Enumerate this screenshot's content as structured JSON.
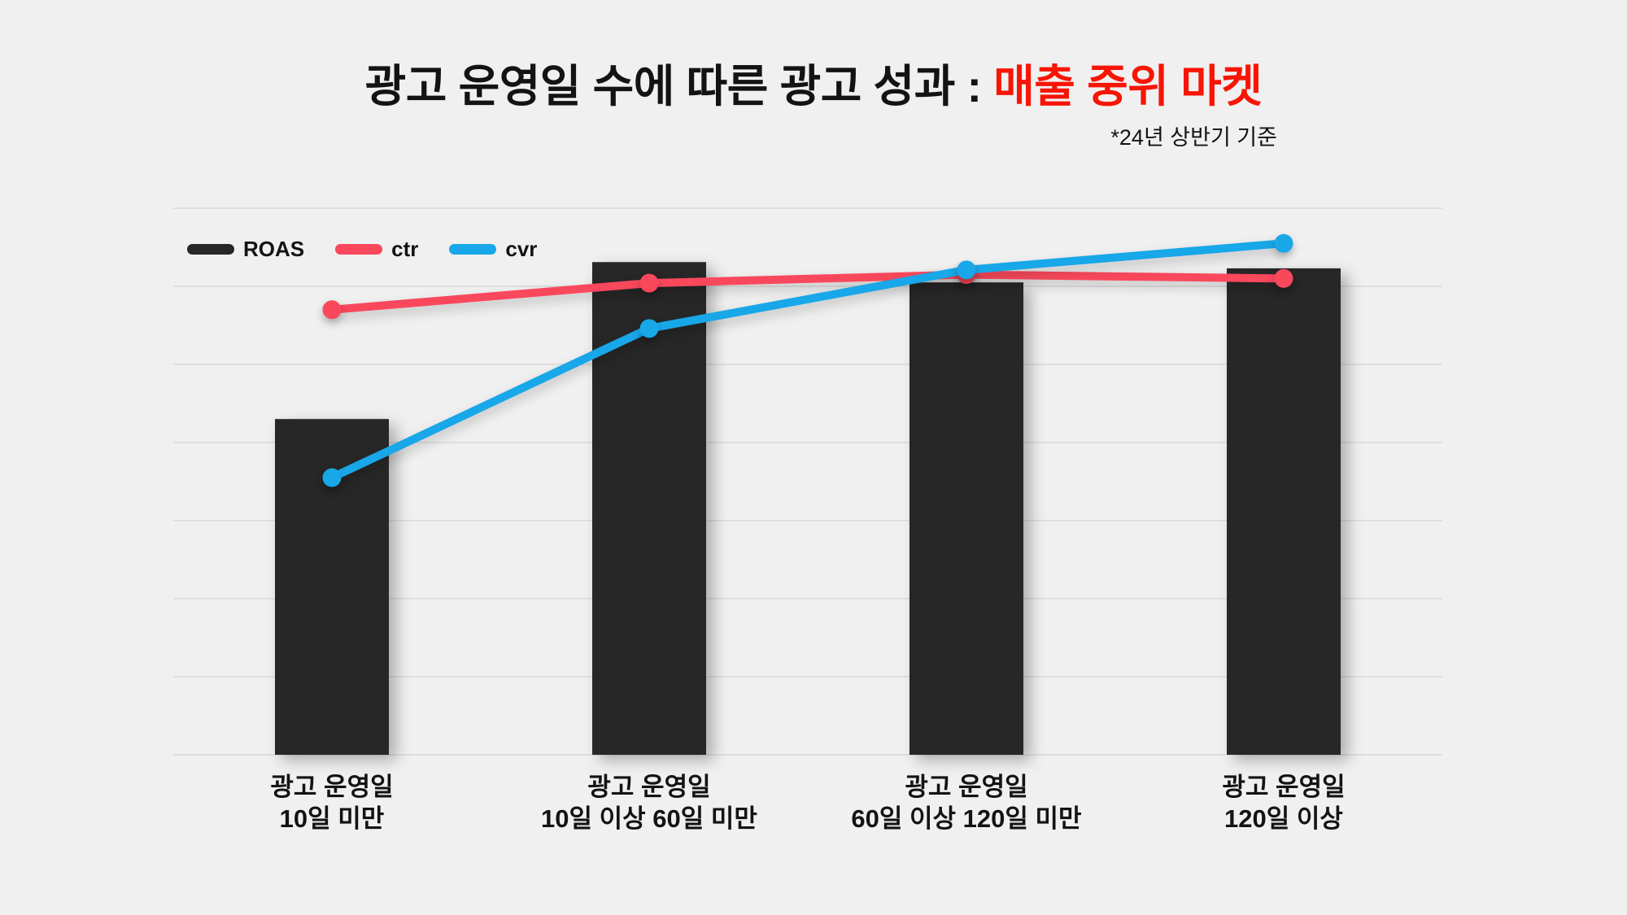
{
  "page": {
    "background_color": "#f0f0f0",
    "text_color": "#131313",
    "gridline_color": "#dfdfdf"
  },
  "header": {
    "title_black": "광고 운영일 수에 따른 광고 성과 : ",
    "title_red": "매출 중위 마켓",
    "title_red_color": "#f71505",
    "subtitle": "*24년 상반기 기준"
  },
  "legend": [
    {
      "label": "ROAS",
      "color": "#272727"
    },
    {
      "label": "ctr",
      "color": "#f9485c"
    },
    {
      "label": "cvr",
      "color": "#18a7e8"
    }
  ],
  "chart_data": {
    "type": "bar+line combo",
    "title": "광고 운영일 수에 따른 광고 성과 : 매출 중위 마켓",
    "subtitle": "*24년 상반기 기준",
    "categories": [
      "광고 운영일\n10일 미만",
      "광고 운영일\n10일 이상 60일 미만",
      "광고 운영일\n60일 이상 120일 미만",
      "광고 운영일\n120일 이상"
    ],
    "series": [
      {
        "name": "ROAS",
        "type": "bar",
        "color": "#272727",
        "values": [
          4.3,
          6.31,
          6.05,
          6.23
        ]
      },
      {
        "name": "ctr",
        "type": "line",
        "color": "#f9485c",
        "values": [
          5.7,
          6.04,
          6.15,
          6.1
        ]
      },
      {
        "name": "cvr",
        "type": "line",
        "color": "#18a7e8",
        "values": [
          3.55,
          5.46,
          6.21,
          6.55
        ]
      }
    ],
    "xlabel": "",
    "ylabel": "",
    "ylim": [
      0,
      7
    ],
    "y_axis_visible": false,
    "value_unit": "gridline intervals (no numeric axis labels shown in image)",
    "gridlines": 8,
    "legend_position": "top-left",
    "legend_entries": [
      "ROAS",
      "ctr",
      "cvr"
    ]
  }
}
